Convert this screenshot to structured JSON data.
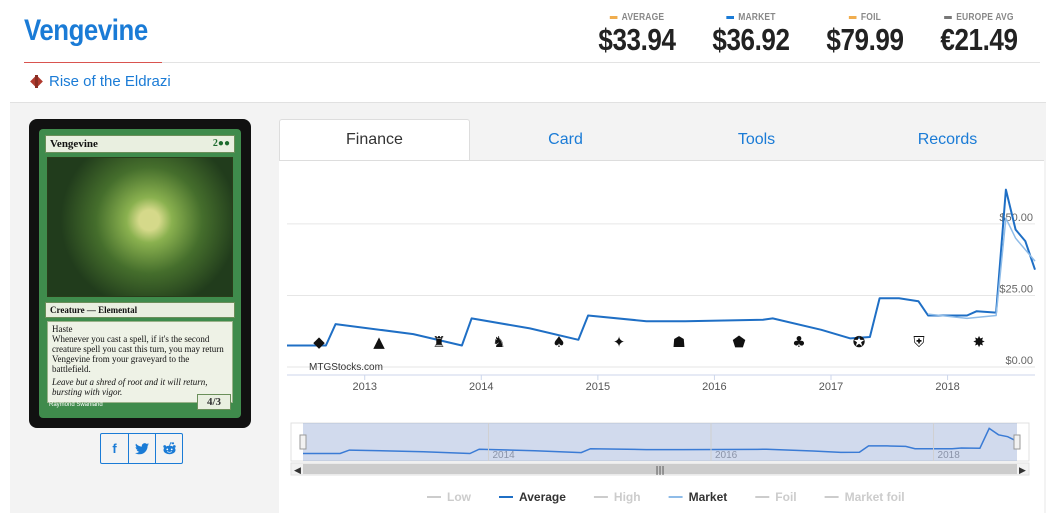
{
  "card": {
    "title": "Vengevine",
    "set_name": "Rise of the Eldrazi",
    "image": {
      "name": "Vengevine",
      "mana": "2●●",
      "type_line": "Creature — Elemental",
      "rules": "Haste\nWhenever you cast a spell, if it's the second creature spell you cast this turn, you may return Vengevine from your graveyard to the battlefield.",
      "flavor": "Leave but a shred of root and it will return, bursting with vigor.",
      "pt": "4/3",
      "artist": "Raymond Swanland"
    }
  },
  "prices": [
    {
      "label": "AVERAGE",
      "value": "$33.94",
      "color": "#f0ad4e"
    },
    {
      "label": "MARKET",
      "value": "$36.92",
      "color": "#1a7bd6"
    },
    {
      "label": "FOIL",
      "value": "$79.99",
      "color": "#f0ad4e"
    },
    {
      "label": "EUROPE AVG",
      "value": "€21.49",
      "color": "#777777"
    }
  ],
  "share": {
    "facebook": "f",
    "twitter": "t",
    "reddit": "r"
  },
  "tabs": [
    {
      "label": "Finance",
      "active": true
    },
    {
      "label": "Card",
      "active": false
    },
    {
      "label": "Tools",
      "active": false
    },
    {
      "label": "Records",
      "active": false
    }
  ],
  "chart_data": {
    "type": "line",
    "watermark": "MTGStocks.com",
    "xlim": [
      "2012-05",
      "2018-10"
    ],
    "ylim": [
      0,
      65
    ],
    "x_ticks": [
      "2013",
      "2014",
      "2015",
      "2016",
      "2017",
      "2018"
    ],
    "y_ticks": [
      "$0.00",
      "$25.00",
      "$50.00"
    ],
    "navigator_ticks": [
      "2014",
      "2016",
      "2018"
    ],
    "series": [
      {
        "name": "Average",
        "color": "#1f6fc5",
        "points": [
          [
            "2012-05",
            7.5
          ],
          [
            "2012-09",
            7.5
          ],
          [
            "2012-10",
            15.0
          ],
          [
            "2013-06",
            11.5
          ],
          [
            "2013-11",
            7.5
          ],
          [
            "2013-12",
            17.0
          ],
          [
            "2014-06",
            13.5
          ],
          [
            "2014-11",
            9.5
          ],
          [
            "2014-12",
            18.0
          ],
          [
            "2015-06",
            16.0
          ],
          [
            "2015-10",
            16.0
          ],
          [
            "2016-06",
            16.5
          ],
          [
            "2016-07",
            17.0
          ],
          [
            "2016-12",
            13.0
          ],
          [
            "2017-03",
            10.0
          ],
          [
            "2017-05",
            10.5
          ],
          [
            "2017-06",
            24.0
          ],
          [
            "2017-08",
            24.0
          ],
          [
            "2017-10",
            23.0
          ],
          [
            "2017-11",
            18.0
          ],
          [
            "2018-03",
            18.0
          ],
          [
            "2018-04",
            19.5
          ],
          [
            "2018-06",
            19.0
          ],
          [
            "2018-07",
            62.0
          ],
          [
            "2018-08",
            48.0
          ],
          [
            "2018-09",
            44.0
          ],
          [
            "2018-10",
            34.0
          ]
        ]
      },
      {
        "name": "Market",
        "color": "#8fbce8",
        "points": [
          [
            "2017-11",
            18.5
          ],
          [
            "2018-03",
            17.0
          ],
          [
            "2018-06",
            18.0
          ],
          [
            "2018-07",
            52.0
          ],
          [
            "2018-08",
            45.0
          ],
          [
            "2018-10",
            37.0
          ]
        ]
      }
    ],
    "legend": [
      {
        "name": "Low",
        "color": "#cccccc",
        "visible": false
      },
      {
        "name": "Average",
        "color": "#1f6fc5",
        "visible": true
      },
      {
        "name": "High",
        "color": "#cccccc",
        "visible": false
      },
      {
        "name": "Market",
        "color": "#8fbce8",
        "visible": true
      },
      {
        "name": "Foil",
        "color": "#cccccc",
        "visible": false
      },
      {
        "name": "Market foil",
        "color": "#cccccc",
        "visible": false
      }
    ],
    "set_markers": [
      "◆",
      "▲",
      "♜",
      "♞",
      "♠",
      "✦",
      "☗",
      "⬟",
      "♣",
      "✪",
      "⛨",
      "✸"
    ]
  }
}
